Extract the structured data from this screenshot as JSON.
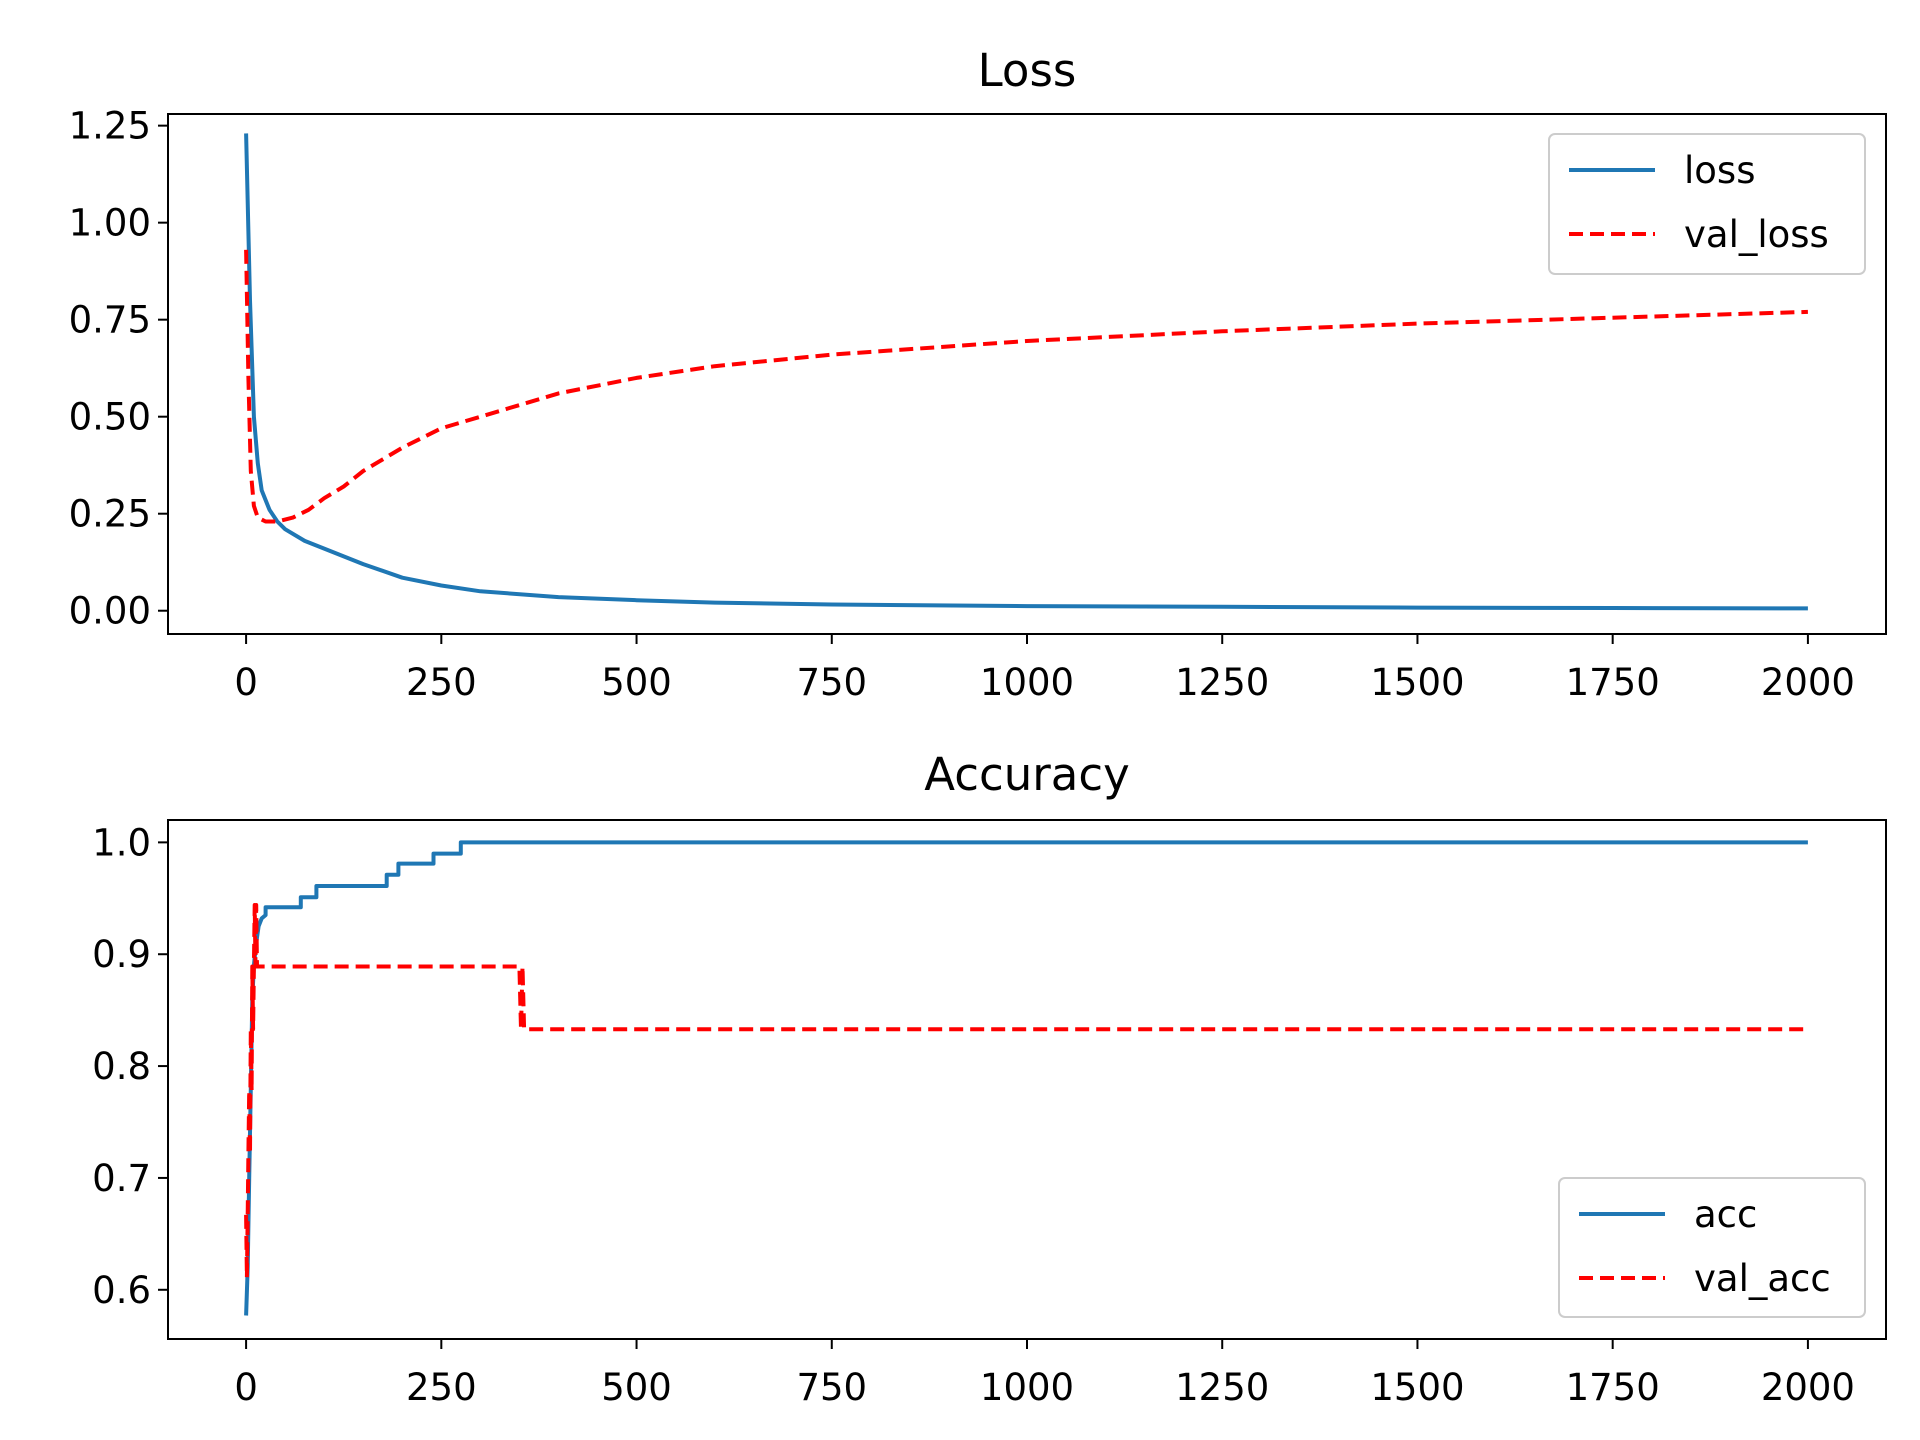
{
  "chart_data": [
    {
      "type": "line",
      "title": "Loss",
      "xlabel": "",
      "ylabel": "",
      "xlim": [
        -100,
        2100
      ],
      "ylim": [
        -0.06,
        1.28
      ],
      "xticks": [
        0,
        250,
        500,
        750,
        1000,
        1250,
        1500,
        1750,
        2000
      ],
      "xtick_labels": [
        "0",
        "250",
        "500",
        "750",
        "1000",
        "1250",
        "1500",
        "1750",
        "2000"
      ],
      "yticks": [
        0.0,
        0.25,
        0.5,
        0.75,
        1.0,
        1.25
      ],
      "ytick_labels": [
        "0.00",
        "0.25",
        "0.50",
        "0.75",
        "1.00",
        "1.25"
      ],
      "grid": false,
      "legend_position": "top-right",
      "series": [
        {
          "name": "loss",
          "color": "#1f77b4",
          "style": "solid",
          "x": [
            0,
            5,
            10,
            15,
            20,
            30,
            40,
            50,
            75,
            100,
            150,
            200,
            250,
            300,
            400,
            500,
            600,
            750,
            1000,
            1250,
            1500,
            1750,
            2000
          ],
          "y": [
            1.23,
            0.8,
            0.5,
            0.38,
            0.31,
            0.26,
            0.23,
            0.21,
            0.18,
            0.16,
            0.12,
            0.085,
            0.065,
            0.05,
            0.035,
            0.027,
            0.021,
            0.016,
            0.012,
            0.01,
            0.008,
            0.007,
            0.006
          ]
        },
        {
          "name": "val_loss",
          "color": "#ff0000",
          "style": "dashed",
          "x": [
            0,
            3,
            6,
            10,
            15,
            25,
            40,
            60,
            80,
            100,
            125,
            150,
            200,
            250,
            300,
            400,
            500,
            600,
            750,
            1000,
            1250,
            1500,
            1750,
            2000
          ],
          "y": [
            0.93,
            0.6,
            0.36,
            0.27,
            0.24,
            0.23,
            0.23,
            0.24,
            0.26,
            0.29,
            0.32,
            0.36,
            0.42,
            0.47,
            0.5,
            0.56,
            0.6,
            0.63,
            0.66,
            0.695,
            0.72,
            0.74,
            0.755,
            0.77
          ]
        }
      ]
    },
    {
      "type": "line",
      "title": "Accuracy",
      "xlabel": "",
      "ylabel": "",
      "xlim": [
        -100,
        2100
      ],
      "ylim": [
        0.556,
        1.02
      ],
      "xticks": [
        0,
        250,
        500,
        750,
        1000,
        1250,
        1500,
        1750,
        2000
      ],
      "xtick_labels": [
        "0",
        "250",
        "500",
        "750",
        "1000",
        "1250",
        "1500",
        "1750",
        "2000"
      ],
      "yticks": [
        0.6,
        0.7,
        0.8,
        0.9,
        1.0
      ],
      "ytick_labels": [
        "0.6",
        "0.7",
        "0.8",
        "0.9",
        "1.0"
      ],
      "grid": false,
      "legend_position": "bottom-right",
      "series": [
        {
          "name": "acc",
          "color": "#1f77b4",
          "style": "solid",
          "x": [
            0,
            2,
            4,
            6,
            8,
            10,
            13,
            16,
            20,
            25,
            25,
            70,
            70,
            90,
            90,
            180,
            180,
            195,
            195,
            240,
            240,
            275,
            275,
            2000
          ],
          "y": [
            0.577,
            0.62,
            0.7,
            0.78,
            0.86,
            0.89,
            0.91,
            0.925,
            0.932,
            0.935,
            0.942,
            0.942,
            0.951,
            0.951,
            0.961,
            0.961,
            0.971,
            0.971,
            0.981,
            0.981,
            0.99,
            0.99,
            1.0,
            1.0
          ]
        },
        {
          "name": "val_acc",
          "color": "#ff0000",
          "style": "dashed",
          "x": [
            0,
            1,
            2,
            3,
            4,
            5,
            6,
            7,
            8,
            9,
            10,
            11,
            12,
            13,
            14,
            15,
            350,
            352,
            354,
            356,
            356,
            2000
          ],
          "y": [
            0.667,
            0.611,
            0.667,
            0.722,
            0.778,
            0.722,
            0.833,
            0.778,
            0.889,
            0.833,
            0.889,
            0.944,
            0.889,
            0.944,
            0.889,
            0.889,
            0.889,
            0.833,
            0.889,
            0.833,
            0.833,
            0.833
          ]
        }
      ]
    }
  ]
}
